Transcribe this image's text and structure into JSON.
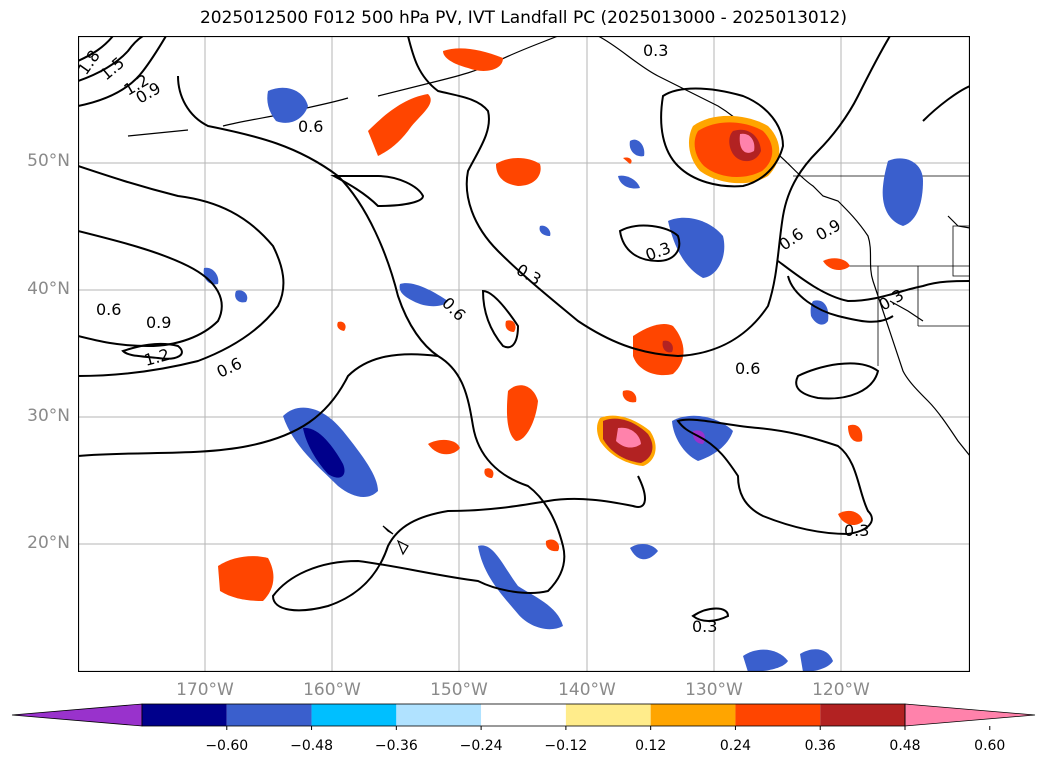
{
  "title": "2025012500 F012 500 hPa PV, IVT Landfall PC (2025013000 - 2025013012)",
  "map": {
    "lat_labels": [
      "50°N",
      "40°N",
      "30°N",
      "20°N"
    ],
    "lon_labels": [
      "170°W",
      "160°W",
      "150°W",
      "140°W",
      "130°W",
      "120°W"
    ],
    "lat_range": [
      10,
      60
    ],
    "lon_range": [
      -180,
      -110
    ],
    "grid": true,
    "contour_labels": [
      "1.8",
      "1.5",
      "1.2",
      "0.9",
      "0.6",
      "0.3"
    ]
  },
  "colorbar": {
    "colors": [
      "#9932cc",
      "#00008b",
      "#3a5fcd",
      "#00bfff",
      "#b0e2ff",
      "#ffffff",
      "#ffec8b",
      "#ffa500",
      "#ff4500",
      "#b22222",
      "#ff82ab"
    ],
    "tick_labels": [
      "−0.60",
      "−0.48",
      "−0.36",
      "−0.24",
      "−0.12",
      "0.12",
      "0.24",
      "0.36",
      "0.48",
      "0.60"
    ]
  }
}
